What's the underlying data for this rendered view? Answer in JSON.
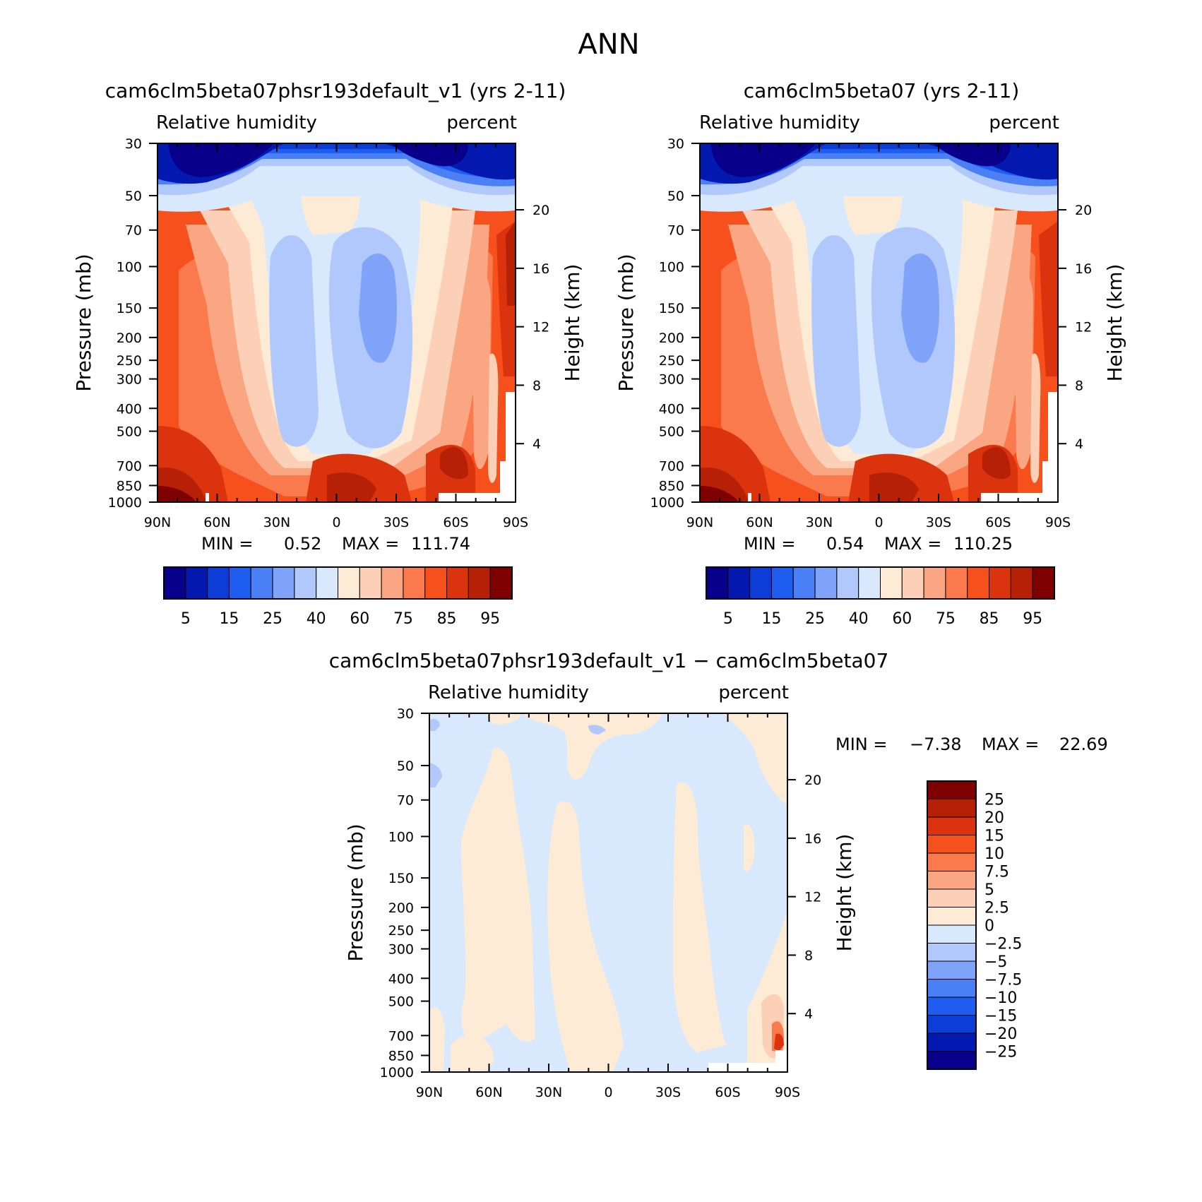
{
  "figure": {
    "title": "ANN"
  },
  "chart_data": [
    {
      "type": "heatmap",
      "title": "cam6clm5beta07phsr193default_v1 (yrs 2-11)",
      "subtitle_left": "Relative humidity",
      "subtitle_right": "percent",
      "ylabel": "Pressure (mb)",
      "ylabel_right": "Height (km)",
      "xticks": [
        "90N",
        "60N",
        "30N",
        "0",
        "30S",
        "60S",
        "90S"
      ],
      "yticks": [
        "30",
        "50",
        "70",
        "100",
        "150",
        "200",
        "250",
        "300",
        "400",
        "500",
        "700",
        "850",
        "1000"
      ],
      "yticks_right": [
        "20",
        "16",
        "12",
        "8",
        "4"
      ],
      "min_label": "MIN =",
      "min_value": "0.52",
      "max_label": "MAX =",
      "max_value": "111.74",
      "colorbar": {
        "orientation": "horizontal",
        "colors": [
          "#08008a",
          "#0419b0",
          "#0d3dd6",
          "#1f5cf0",
          "#4a7ff5",
          "#7ea3f8",
          "#b0c8fb",
          "#d8e8fd",
          "#feebd6",
          "#fcd0b6",
          "#fba682",
          "#fa7a4e",
          "#f6501d",
          "#da330d",
          "#b52007",
          "#7f0000"
        ],
        "labels": [
          "5",
          "15",
          "25",
          "40",
          "60",
          "75",
          "85",
          "95"
        ]
      }
    },
    {
      "type": "heatmap",
      "title": "cam6clm5beta07 (yrs 2-11)",
      "subtitle_left": "Relative humidity",
      "subtitle_right": "percent",
      "ylabel": "Pressure (mb)",
      "ylabel_right": "Height (km)",
      "xticks": [
        "90N",
        "60N",
        "30N",
        "0",
        "30S",
        "60S",
        "90S"
      ],
      "yticks": [
        "30",
        "50",
        "70",
        "100",
        "150",
        "200",
        "250",
        "300",
        "400",
        "500",
        "700",
        "850",
        "1000"
      ],
      "yticks_right": [
        "20",
        "16",
        "12",
        "8",
        "4"
      ],
      "min_label": "MIN =",
      "min_value": "0.54",
      "max_label": "MAX =",
      "max_value": "110.25",
      "colorbar": {
        "orientation": "horizontal",
        "colors": [
          "#08008a",
          "#0419b0",
          "#0d3dd6",
          "#1f5cf0",
          "#4a7ff5",
          "#7ea3f8",
          "#b0c8fb",
          "#d8e8fd",
          "#feebd6",
          "#fcd0b6",
          "#fba682",
          "#fa7a4e",
          "#f6501d",
          "#da330d",
          "#b52007",
          "#7f0000"
        ],
        "labels": [
          "5",
          "15",
          "25",
          "40",
          "60",
          "75",
          "85",
          "95"
        ]
      }
    },
    {
      "type": "heatmap",
      "title": "cam6clm5beta07phsr193default_v1 - cam6clm5beta07",
      "subtitle_left": "Relative humidity",
      "subtitle_right": "percent",
      "ylabel": "Pressure (mb)",
      "ylabel_right": "Height (km)",
      "xticks": [
        "90N",
        "60N",
        "30N",
        "0",
        "30S",
        "60S",
        "90S"
      ],
      "yticks": [
        "30",
        "50",
        "70",
        "100",
        "150",
        "200",
        "250",
        "300",
        "400",
        "500",
        "700",
        "850",
        "1000"
      ],
      "yticks_right": [
        "20",
        "16",
        "12",
        "8",
        "4"
      ],
      "min_label": "MIN =",
      "min_value": "-7.38",
      "max_label": "MAX =",
      "max_value": "22.69",
      "colorbar": {
        "orientation": "vertical",
        "colors": [
          "#7f0000",
          "#b52007",
          "#da330d",
          "#f6501d",
          "#fa7a4e",
          "#fba682",
          "#fcd0b6",
          "#feebd6",
          "#d8e8fd",
          "#b0c8fb",
          "#7ea3f8",
          "#4a7ff5",
          "#1f5cf0",
          "#0d3dd6",
          "#0419b0",
          "#08008a"
        ],
        "labels": [
          "25",
          "20",
          "15",
          "10",
          "7.5",
          "5",
          "2.5",
          "0",
          "-2.5",
          "-5",
          "-7.5",
          "-10",
          "-15",
          "-20",
          "-25"
        ]
      }
    }
  ]
}
